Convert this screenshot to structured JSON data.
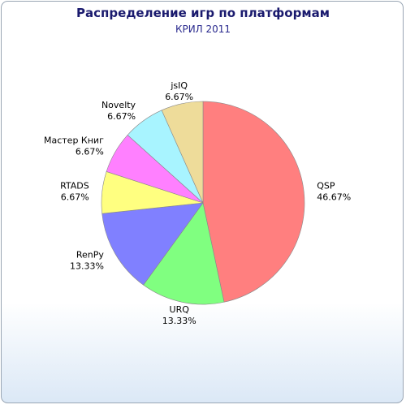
{
  "chart_data": {
    "type": "pie",
    "title": "Распределение игр по платформам",
    "subtitle": "КРИЛ 2011",
    "categories": [
      "QSP",
      "URQ",
      "RenPy",
      "RTADS",
      "Мастер Книг",
      "Novelty",
      "jsIQ"
    ],
    "values": [
      46.67,
      13.33,
      13.33,
      6.67,
      6.67,
      6.67,
      6.67
    ],
    "value_labels": [
      "46.67%",
      "13.33%",
      "13.33%",
      "6.67%",
      "6.67%",
      "6.67%",
      "6.67%"
    ],
    "colors": [
      "#ff7f7f",
      "#80ff80",
      "#8080ff",
      "#ffff80",
      "#ff80ff",
      "#a8f4ff",
      "#eedc9a"
    ]
  }
}
